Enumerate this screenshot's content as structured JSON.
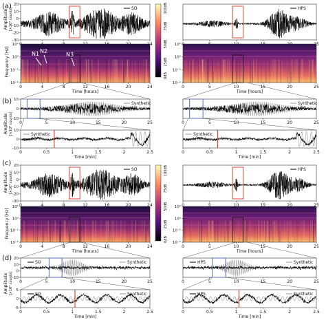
{
  "figure": {
    "panel_letters": [
      "(a)",
      "(b)",
      "(c)",
      "(d)"
    ],
    "colorbar": {
      "ticks": [
        "100dB",
        "75dB",
        "50dB",
        "25dB",
        "0dB"
      ]
    }
  },
  "labels": {
    "amplitude": "Amplitude",
    "amplitude_unit": "[×10³ counts]",
    "frequency": "Frequency [Hz]",
    "time_hours": "Time [hours]",
    "time_min": "Time [min]",
    "SO": "SO",
    "HPS": "HPS",
    "synthetic": "Synthetic",
    "N1": "N1",
    "N2": "N2",
    "N3": "N3"
  },
  "chart_data": [
    {
      "panel": "(a)",
      "station": "SO",
      "type": "line",
      "x_range_hours": [
        0,
        24
      ],
      "ylim": [
        -30,
        20
      ],
      "ylabel": "Amplitude [×10³ counts]",
      "x_ticks": [
        "0",
        "4",
        "8",
        "12",
        "16",
        "20",
        "24"
      ],
      "y_ticks": [
        "20",
        "10",
        "0",
        "-10",
        "-20",
        "-30"
      ],
      "legend": [
        "SO"
      ],
      "legend_position": "top-right",
      "highlight_hours": [
        9.0,
        11.0
      ]
    },
    {
      "panel": "(a)",
      "station": "HPS",
      "type": "line",
      "x_range_hours": [
        0,
        25
      ],
      "ylim": [
        -30,
        20
      ],
      "x_ticks": [
        "0",
        "5",
        "10",
        "15",
        "20",
        "25"
      ],
      "legend": [
        "HPS"
      ],
      "legend_position": "top-right",
      "highlight_hours": [
        9.3,
        11.3
      ]
    },
    {
      "panel": "(a)",
      "station": "SO",
      "type": "heatmap",
      "ylabel": "Frequency [Hz]",
      "xlabel": "Time [hours]",
      "y_ticks": [
        "10¹",
        "10⁰",
        "10⁻¹",
        "10⁻²"
      ],
      "x_ticks": [
        "0",
        "4",
        "8",
        "12",
        "16",
        "20",
        "24"
      ],
      "annotations": [
        "N1",
        "N2",
        "N3"
      ]
    },
    {
      "panel": "(a)",
      "station": "HPS",
      "type": "heatmap",
      "xlabel": "Time [hours]",
      "y_ticks": [
        "10¹",
        "10⁰",
        "10⁻¹",
        "10⁻²"
      ],
      "x_ticks": [
        "0",
        "5",
        "10",
        "15",
        "20",
        "25"
      ]
    },
    {
      "panel": "(b)",
      "station": "SO",
      "type": "line",
      "x_range_min": [
        0,
        25
      ],
      "ylim": [
        -10,
        10
      ],
      "ylabel": "Amplitude [×10³ counts]",
      "x_ticks": [
        "0",
        "5",
        "10",
        "15",
        "20",
        "25"
      ],
      "y_ticks": [
        "10",
        "0",
        "-10"
      ],
      "legend": [
        "Synthetic",
        "SO"
      ],
      "legend_position": "top-right"
    },
    {
      "panel": "(b)",
      "station": "HPS",
      "type": "line",
      "x_range_min": [
        0,
        25
      ],
      "ylim": [
        -10,
        10
      ],
      "x_ticks": [
        "0",
        "5",
        "10",
        "15",
        "20",
        "25"
      ],
      "legend": [
        "Synthetic",
        "HPS"
      ],
      "legend_position": "top-right"
    },
    {
      "panel": "(b)",
      "station": "SO",
      "type": "line",
      "zoom": true,
      "x_range_min": [
        0,
        2.5
      ],
      "ylim": [
        -10,
        10
      ],
      "xlabel": "Time [min]",
      "x_ticks": [
        "0",
        "0.5",
        "1",
        "1.5",
        "2",
        "2.5"
      ],
      "y_ticks": [
        "10",
        "0",
        "-10"
      ],
      "legend": [
        "Synthetic",
        "SO"
      ],
      "legend_position": "top-left",
      "marker_min": 0.65
    },
    {
      "panel": "(b)",
      "station": "HPS",
      "type": "line",
      "zoom": true,
      "x_range_min": [
        0,
        2.5
      ],
      "ylim": [
        -10,
        10
      ],
      "xlabel": "Time [min]",
      "x_ticks": [
        "0",
        "0.5",
        "1",
        "1.5",
        "2",
        "2.5"
      ],
      "legend": [
        "Synthetic",
        "HPS"
      ],
      "legend_position": "top-left",
      "marker_min": 0.65
    },
    {
      "panel": "(c)",
      "station": "SO",
      "type": "line",
      "x_range_hours": [
        0,
        24
      ],
      "ylim": [
        -30,
        20
      ],
      "ylabel": "Amplitude [×10³ counts]",
      "x_ticks": [
        "0",
        "4",
        "8",
        "12",
        "16",
        "20",
        "24"
      ],
      "y_ticks": [
        "20",
        "10",
        "0",
        "-10",
        "-20",
        "-30"
      ],
      "legend": [
        "SO"
      ],
      "legend_position": "top-right",
      "highlight_hours": [
        9.0,
        11.0
      ]
    },
    {
      "panel": "(c)",
      "station": "HPS",
      "type": "line",
      "x_range_hours": [
        0,
        25
      ],
      "ylim": [
        -30,
        20
      ],
      "x_ticks": [
        "0",
        "5",
        "10",
        "15",
        "20",
        "25"
      ],
      "legend": [
        "HPS"
      ],
      "legend_position": "top-right",
      "highlight_hours": [
        9.3,
        11.3
      ]
    },
    {
      "panel": "(c)",
      "station": "SO",
      "type": "heatmap",
      "ylabel": "Frequency [Hz]",
      "xlabel": "Time [hours]",
      "y_ticks": [
        "10¹",
        "10⁰",
        "10⁻¹",
        "10⁻²"
      ],
      "x_ticks": [
        "0",
        "4",
        "8",
        "12",
        "16",
        "20",
        "24"
      ]
    },
    {
      "panel": "(c)",
      "station": "HPS",
      "type": "heatmap",
      "xlabel": "Time [hours]",
      "y_ticks": [
        "10¹",
        "10⁰",
        "10⁻¹",
        "10⁻²"
      ],
      "x_ticks": [
        "0",
        "5",
        "10",
        "15",
        "20",
        "25"
      ]
    },
    {
      "panel": "(d)",
      "station": "SO",
      "type": "line",
      "x_range_min": [
        0,
        25
      ],
      "ylim": [
        -10,
        20
      ],
      "ylabel": "Amplitude [×10³ counts]",
      "x_ticks": [
        "0",
        "5",
        "10",
        "15",
        "20",
        "25"
      ],
      "y_ticks": [
        "20",
        "10",
        "0",
        "-10"
      ],
      "legend": [
        "SO",
        "Synthetic"
      ],
      "legend_position": "top"
    },
    {
      "panel": "(d)",
      "station": "HPS",
      "type": "line",
      "x_range_min": [
        0,
        25
      ],
      "ylim": [
        -10,
        20
      ],
      "x_ticks": [
        "0",
        "5",
        "10",
        "15",
        "20",
        "25"
      ],
      "legend": [
        "HPS",
        "Synthetic"
      ],
      "legend_position": "top"
    },
    {
      "panel": "(d)",
      "station": "SO",
      "type": "line",
      "zoom": true,
      "x_range_min": [
        0,
        2.5
      ],
      "ylim": [
        -5,
        5
      ],
      "xlabel": "Time [min]",
      "x_ticks": [
        "0",
        "0.5",
        "1",
        "1.5",
        "2",
        "2.5"
      ],
      "y_ticks": [
        "5",
        "0",
        "-5"
      ],
      "legend": [
        "SO",
        "Synthetic"
      ],
      "legend_position": "top",
      "marker_min": 1.05
    },
    {
      "panel": "(d)",
      "station": "HPS",
      "type": "line",
      "zoom": true,
      "x_range_min": [
        0,
        2.5
      ],
      "ylim": [
        -5,
        5
      ],
      "xlabel": "Time [min]",
      "x_ticks": [
        "0",
        "0.5",
        "1",
        "1.5",
        "2",
        "2.5"
      ],
      "legend": [
        "HPS",
        "Synthetic"
      ],
      "legend_position": "top",
      "marker_min": 1.05
    }
  ]
}
